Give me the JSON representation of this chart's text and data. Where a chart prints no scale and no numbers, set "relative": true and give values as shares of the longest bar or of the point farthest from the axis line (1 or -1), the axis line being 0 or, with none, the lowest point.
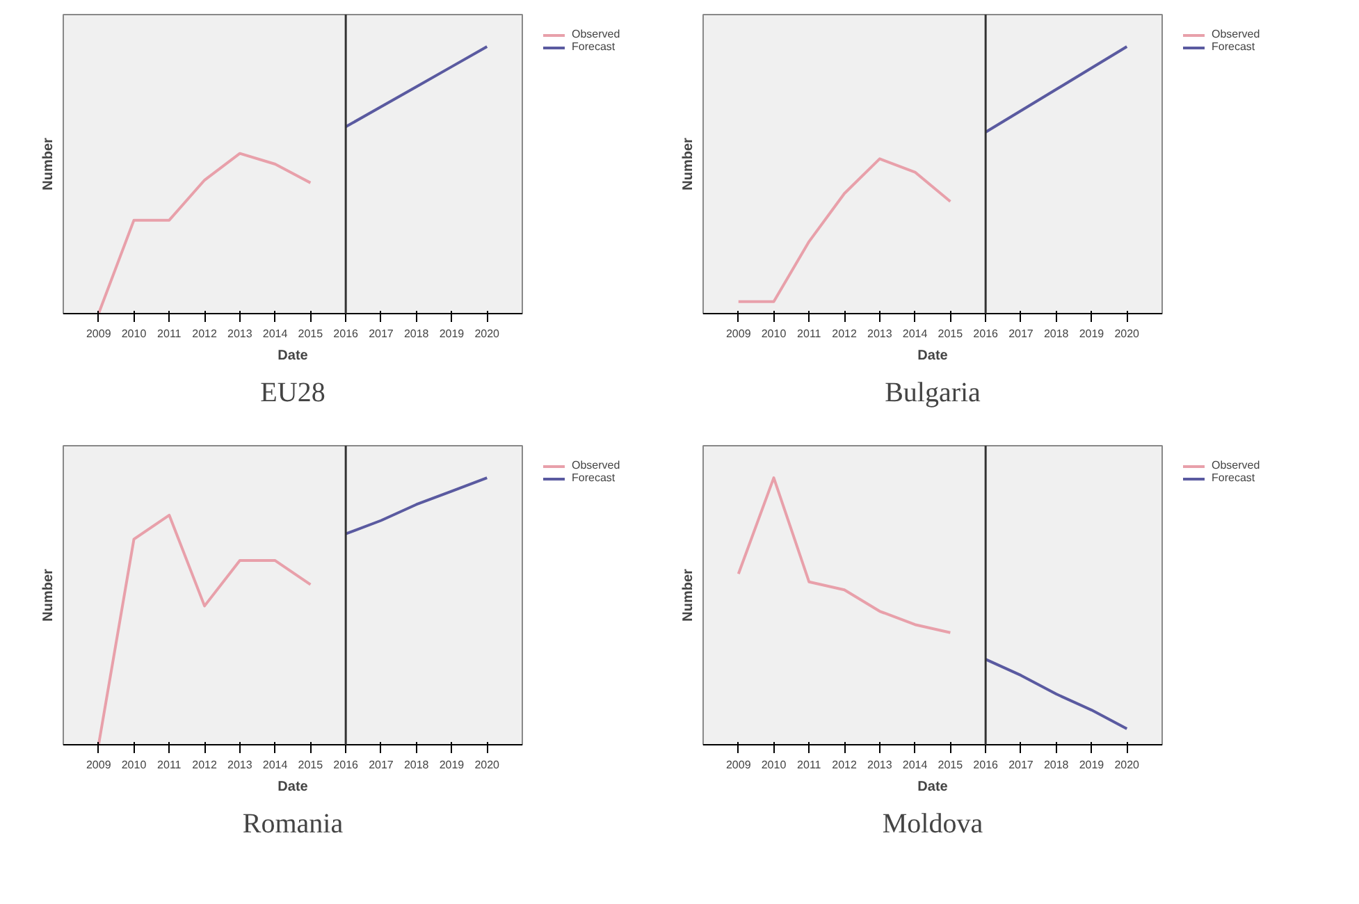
{
  "chart_data": [
    {
      "type": "line",
      "title": "EU28",
      "xlabel": "Date",
      "ylabel": "Number",
      "relative": true,
      "legend": "top right",
      "grid": false,
      "categories": [
        "2009",
        "2010",
        "2011",
        "2012",
        "2013",
        "2014",
        "2015",
        "2016",
        "2017",
        "2018",
        "2019",
        "2020"
      ],
      "series": [
        {
          "name": "Observed",
          "color": "#e8a0aa",
          "values": [
            0,
            0.35,
            0.35,
            0.5,
            0.6,
            0.56,
            0.49,
            null,
            null,
            null,
            null,
            null
          ]
        },
        {
          "name": "Forecast",
          "color": "#5a5aa0",
          "values": [
            null,
            null,
            null,
            null,
            null,
            null,
            null,
            0.7,
            0.775,
            0.85,
            0.925,
            1
          ]
        }
      ],
      "ref_lines": [
        {
          "axis": "x",
          "value": "2016",
          "color": "#333333"
        }
      ]
    },
    {
      "type": "line",
      "title": "Bulgaria",
      "xlabel": "Date",
      "ylabel": "Number",
      "relative": true,
      "legend": "top right",
      "grid": false,
      "categories": [
        "2009",
        "2010",
        "2011",
        "2012",
        "2013",
        "2014",
        "2015",
        "2016",
        "2017",
        "2018",
        "2019",
        "2020"
      ],
      "series": [
        {
          "name": "Observed",
          "color": "#e8a0aa",
          "values": [
            0.045,
            0.045,
            0.27,
            0.45,
            0.58,
            0.53,
            0.42,
            null,
            null,
            null,
            null,
            null
          ]
        },
        {
          "name": "Forecast",
          "color": "#5a5aa0",
          "values": [
            null,
            null,
            null,
            null,
            null,
            null,
            null,
            0.68,
            0.76,
            0.84,
            0.92,
            1
          ]
        }
      ],
      "ref_lines": [
        {
          "axis": "x",
          "value": "2016",
          "color": "#333333"
        }
      ]
    },
    {
      "type": "line",
      "title": "Romania",
      "xlabel": "Date",
      "ylabel": "Number",
      "relative": true,
      "legend": "top right",
      "grid": false,
      "categories": [
        "2009",
        "2010",
        "2011",
        "2012",
        "2013",
        "2014",
        "2015",
        "2016",
        "2017",
        "2018",
        "2019",
        "2020"
      ],
      "series": [
        {
          "name": "Observed",
          "color": "#e8a0aa",
          "values": [
            0,
            0.77,
            0.86,
            0.52,
            0.69,
            0.69,
            0.6,
            null,
            null,
            null,
            null,
            null
          ]
        },
        {
          "name": "Forecast",
          "color": "#5a5aa0",
          "values": [
            null,
            null,
            null,
            null,
            null,
            null,
            null,
            0.79,
            0.84,
            0.9,
            0.95,
            1
          ]
        }
      ],
      "ref_lines": [
        {
          "axis": "x",
          "value": "2016",
          "color": "#333333"
        }
      ]
    },
    {
      "type": "line",
      "title": "Moldova",
      "xlabel": "Date",
      "ylabel": "Number",
      "relative": true,
      "legend": "top right",
      "grid": false,
      "categories": [
        "2009",
        "2010",
        "2011",
        "2012",
        "2013",
        "2014",
        "2015",
        "2016",
        "2017",
        "2018",
        "2019",
        "2020"
      ],
      "series": [
        {
          "name": "Observed",
          "color": "#e8a0aa",
          "values": [
            0.64,
            1,
            0.61,
            0.58,
            0.5,
            0.45,
            0.42,
            null,
            null,
            null,
            null,
            null
          ]
        },
        {
          "name": "Forecast",
          "color": "#5a5aa0",
          "values": [
            null,
            null,
            null,
            null,
            null,
            null,
            null,
            0.32,
            0.26,
            0.19,
            0.13,
            0.06
          ]
        }
      ],
      "ref_lines": [
        {
          "axis": "x",
          "value": "2016",
          "color": "#333333"
        }
      ]
    }
  ]
}
